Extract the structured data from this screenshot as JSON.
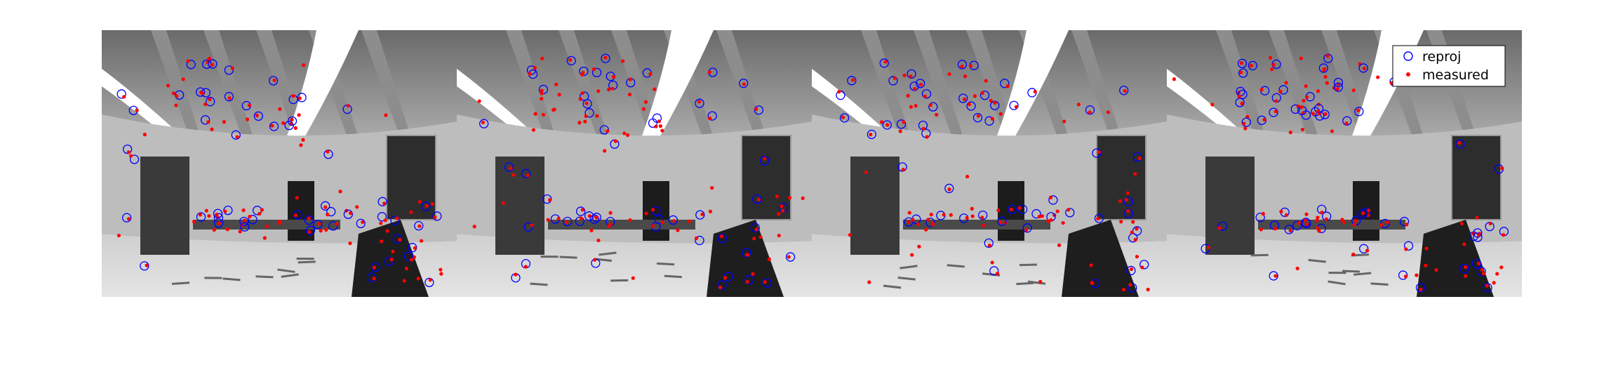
{
  "figure": {
    "panel_count": 4,
    "image_style": "grayscale fisheye camera frame, indoor room",
    "legend": {
      "placement": "top-right",
      "entries": [
        {
          "label": "reproj",
          "marker": "circle-open",
          "color": "#0000ff"
        },
        {
          "label": "measured",
          "marker": "dot",
          "color": "#ff0000"
        }
      ]
    }
  }
}
